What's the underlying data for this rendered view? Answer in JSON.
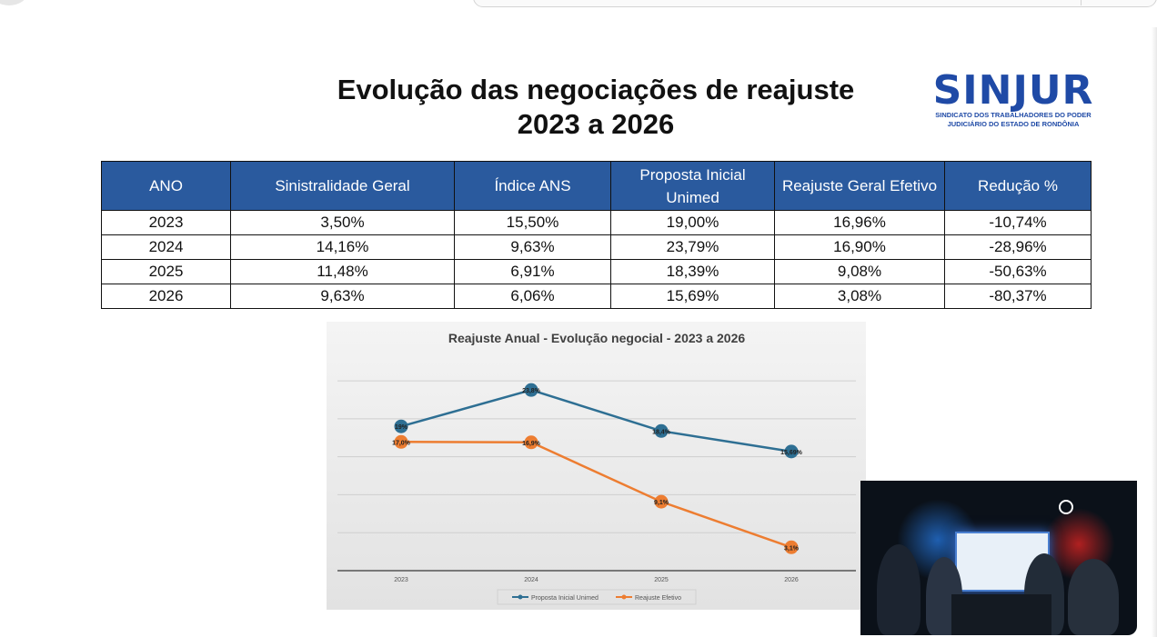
{
  "slide": {
    "title_line1": "Evolução das negociações de reajuste",
    "title_line2": "2023 a 2026"
  },
  "logo": {
    "word": "SINJUR",
    "sub_line1": "SINDICATO DOS TRABALHADORES DO PODER",
    "sub_line2": "JUDICIÁRIO DO ESTADO DE RONDÔNIA"
  },
  "table": {
    "headers": [
      "ANO",
      "Sinistralidade Geral",
      "Índice ANS",
      "Proposta Inicial Unimed",
      "Reajuste Geral Efetivo",
      "Redução %"
    ],
    "rows": [
      [
        "2023",
        "3,50%",
        "15,50%",
        "19,00%",
        "16,96%",
        "-10,74%"
      ],
      [
        "2024",
        "14,16%",
        "9,63%",
        "23,79%",
        "16,90%",
        "-28,96%"
      ],
      [
        "2025",
        "11,48%",
        "6,91%",
        "18,39%",
        "9,08%",
        "-50,63%"
      ],
      [
        "2026",
        "9,63%",
        "6,06%",
        "15,69%",
        "3,08%",
        "-80,37%"
      ]
    ]
  },
  "chart_data": {
    "type": "line",
    "title": "Reajuste Anual - Evolução negocial - 2023 a 2026",
    "categories": [
      "2023",
      "2024",
      "2025",
      "2026"
    ],
    "series": [
      {
        "name": "Proposta Inicial Unimed",
        "values": [
          19.0,
          23.79,
          18.39,
          15.69
        ],
        "labels": [
          "19%",
          "23,8%",
          "18,4%",
          "15,69%"
        ],
        "color": "#2e6f93"
      },
      {
        "name": "Reajuste Efetivo",
        "values": [
          16.96,
          16.9,
          9.08,
          3.08
        ],
        "labels": [
          "17,0%",
          "16,9%",
          "9,1%",
          "3,1%"
        ],
        "color": "#ed7d31"
      }
    ],
    "ylim": [
      0,
      28
    ],
    "grid": true,
    "legend": "bottom"
  },
  "video": {
    "label": "video-call-thumbnail"
  }
}
